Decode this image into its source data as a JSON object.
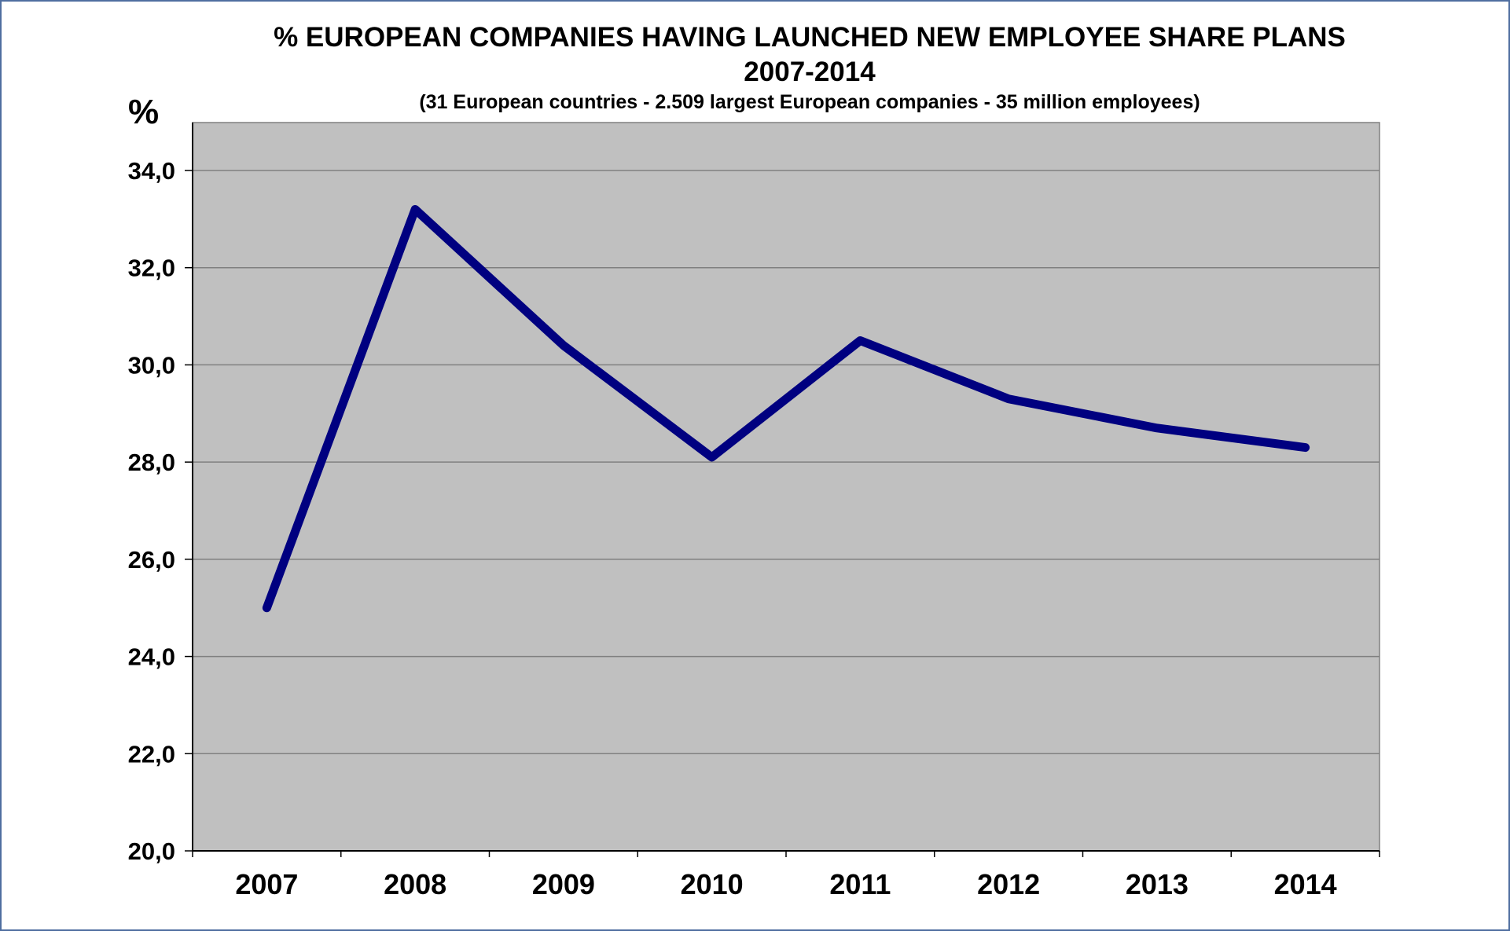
{
  "chart_data": {
    "type": "line",
    "title": "% EUROPEAN COMPANIES HAVING LAUNCHED NEW EMPLOYEE SHARE PLANS",
    "title_line2": "2007-2014",
    "subtitle": "(31 European countries - 2.509 largest European companies - 35 million employees)",
    "ylabel": "%",
    "xlabel": "",
    "categories": [
      "2007",
      "2008",
      "2009",
      "2010",
      "2011",
      "2012",
      "2013",
      "2014"
    ],
    "series": [
      {
        "values": [
          25.0,
          33.2,
          30.4,
          28.1,
          30.5,
          29.3,
          28.7,
          28.3
        ]
      }
    ],
    "ylim": [
      20,
      34
    ],
    "yticks": [
      20,
      22,
      24,
      26,
      28,
      30,
      32,
      34
    ],
    "ytick_labels": [
      "20,0",
      "22,0",
      "24,0",
      "26,0",
      "28,0",
      "30,0",
      "32,0",
      "34,0"
    ],
    "grid": true,
    "legend": "none",
    "colors": {
      "line": "#000080",
      "plot_background": "#c0c0c0",
      "gridline": "#808080",
      "frame_border": "#4f6ea0"
    }
  }
}
